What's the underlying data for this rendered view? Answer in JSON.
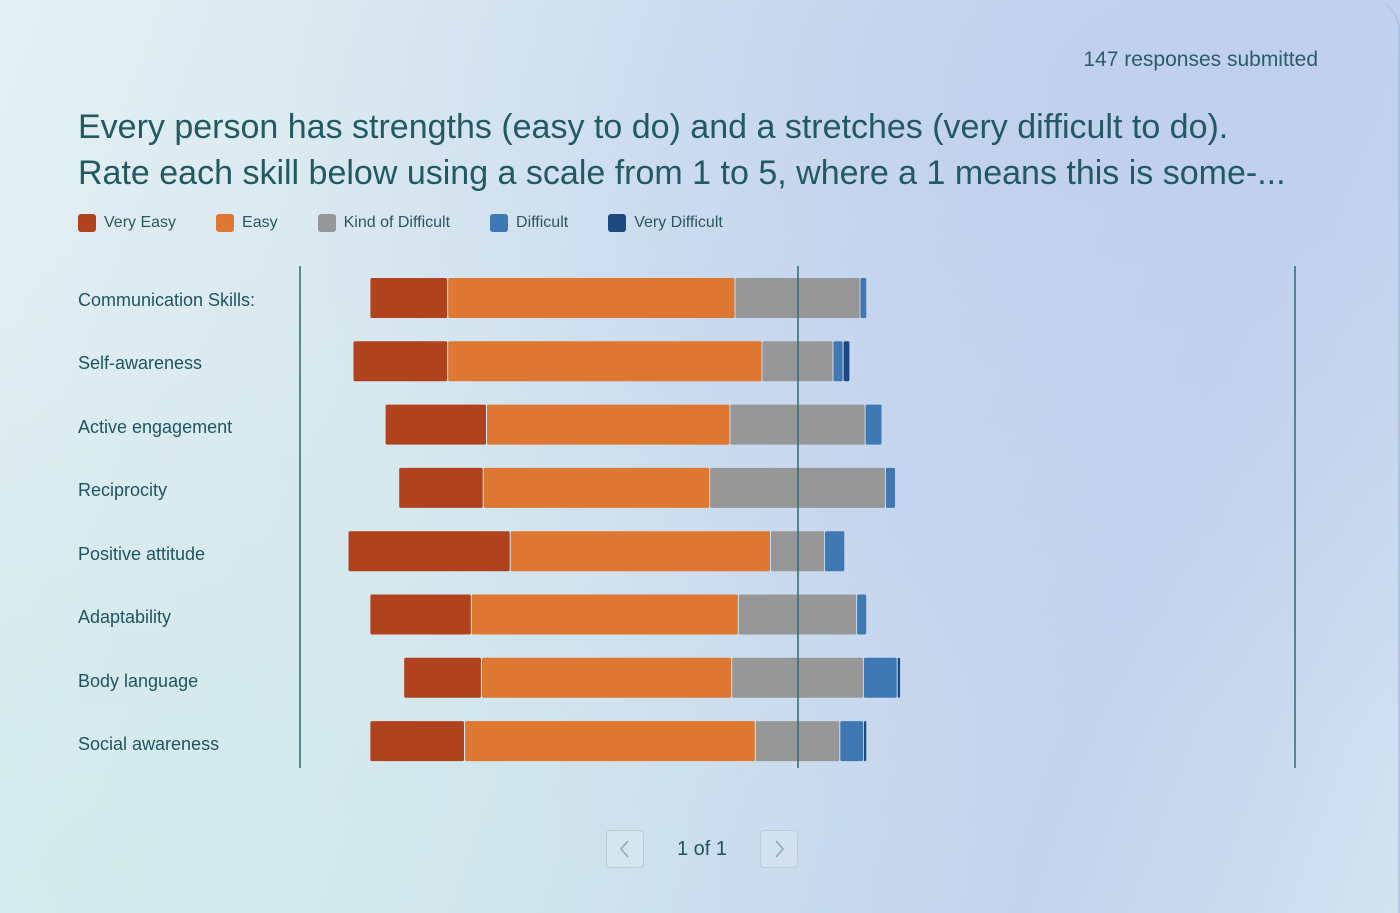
{
  "header": {
    "responses": "147 responses submitted",
    "question_line1": "Every person has strengths (easy to do) and a stretches (very difficult to do).",
    "question_line2": "Rate each skill below using a scale from 1 to 5, where a 1 means this is some-..."
  },
  "pager": {
    "text": "1 of 1",
    "prev_icon": "chevron-left-icon",
    "next_icon": "chevron-right-icon"
  },
  "colors": {
    "very_easy": "#b0431d",
    "easy": "#dd7731",
    "kind_of_difficult": "#979797",
    "difficult": "#3f78b2",
    "very_difficult": "#1d4880",
    "axis": "#2c6c73"
  },
  "chart_data": {
    "type": "bar",
    "orientation": "horizontal-diverging-stacked",
    "legend_position": "top-left",
    "series_names": [
      "Very Easy",
      "Easy",
      "Kind of Difficult",
      "Difficult",
      "Very Difficult"
    ],
    "categories": [
      "Communication Skills:",
      "Self-awareness",
      "Active engagement",
      "Reciprocity",
      "Positive attitude",
      "Adaptability",
      "Body language",
      "Social awareness"
    ],
    "series": [
      {
        "name": "Very Easy",
        "values": [
          23,
          28,
          30,
          25,
          48,
          30,
          23,
          28
        ]
      },
      {
        "name": "Easy",
        "values": [
          85,
          93,
          72,
          67,
          77,
          79,
          74,
          86
        ]
      },
      {
        "name": "Kind of Difficult",
        "values": [
          37,
          21,
          40,
          52,
          16,
          35,
          39,
          25
        ]
      },
      {
        "name": "Difficult",
        "values": [
          2,
          3,
          5,
          3,
          6,
          3,
          10,
          7
        ]
      },
      {
        "name": "Very Difficult",
        "values": [
          0,
          2,
          0,
          0,
          0,
          0,
          1,
          1
        ]
      }
    ],
    "x_center_ratio_of_max": 0.5,
    "grid": false
  }
}
